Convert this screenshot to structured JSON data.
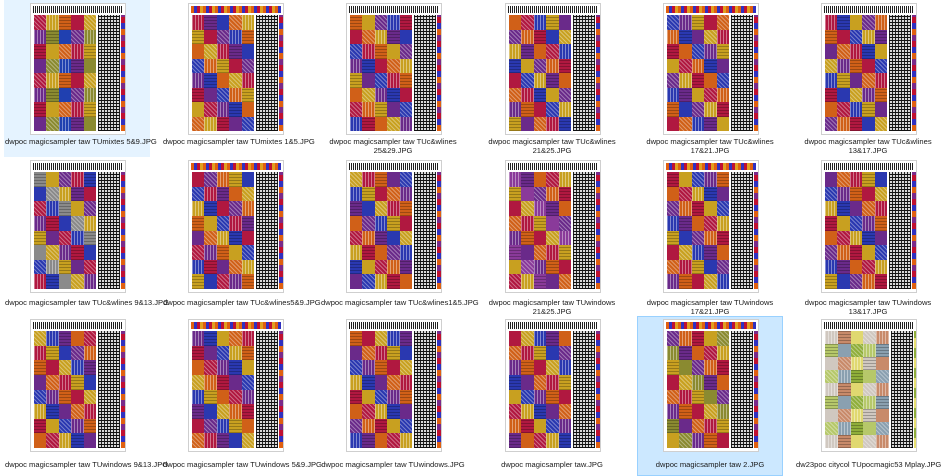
{
  "files": [
    {
      "name": "dwpoc magicsampler taw TUmixtes 5&9.JPG",
      "state": "selected",
      "palette": [
        "#b01840",
        "#2040b0",
        "#c8a020",
        "#6a2a8a",
        "#d06018",
        "#8a8a30"
      ]
    },
    {
      "name": "dwpoc magicsampler taw TUmixtes 1&5.JPG",
      "state": "normal",
      "palette": [
        "#2a38b0",
        "#b01840",
        "#d06018",
        "#6a2a8a",
        "#c8a020"
      ]
    },
    {
      "name": "dwpoc magicsampler taw TUc&wlines 25&29.JPG",
      "state": "normal",
      "palette": [
        "#b01840",
        "#6a2a8a",
        "#d06018",
        "#2a38b0",
        "#c8a020"
      ]
    },
    {
      "name": "dwpoc magicsampler taw TUc&wlines 21&25.JPG",
      "state": "normal",
      "palette": [
        "#b01840",
        "#6a2a8a",
        "#2a38b0",
        "#d06018",
        "#c8a020"
      ]
    },
    {
      "name": "dwpoc magicsampler taw TUc&wlines 17&21.JPG",
      "state": "normal",
      "palette": [
        "#b01840",
        "#6a2a8a",
        "#d06018",
        "#c8a020",
        "#2a38b0"
      ]
    },
    {
      "name": "dwpoc magicsampler taw TUc&wlines 13&17.JPG",
      "state": "normal",
      "palette": [
        "#b01840",
        "#6a2a8a",
        "#2a38b0",
        "#d06018",
        "#c8a020"
      ]
    },
    {
      "name": "dwpoc magicsampler taw TUc&wlines 9&13.JPG",
      "state": "normal",
      "palette": [
        "#6a2a8a",
        "#8a8a8a",
        "#b01840",
        "#c8a020",
        "#2a38b0"
      ]
    },
    {
      "name": "dwpoc magicsampler taw TUc&wlines5&9.JPG",
      "state": "normal",
      "palette": [
        "#2a38b0",
        "#d06018",
        "#b01840",
        "#c8a020",
        "#6a2a8a"
      ]
    },
    {
      "name": "dwpoc magicsampler taw TUc&wlines1&5.JPG",
      "state": "normal",
      "palette": [
        "#b01840",
        "#2a38b0",
        "#d06018",
        "#c8a020",
        "#6a2a8a"
      ]
    },
    {
      "name": "dwpoc magicsampler taw TUwindows 21&25.JPG",
      "state": "normal",
      "palette": [
        "#b01840",
        "#6a2a8a",
        "#c8a020",
        "#d06018",
        "#8a3a9a"
      ]
    },
    {
      "name": "dwpoc magicsampler taw TUwindows 17&21.JPG",
      "state": "normal",
      "palette": [
        "#b01840",
        "#6a2a8a",
        "#c8a020",
        "#d06018",
        "#2a38b0"
      ]
    },
    {
      "name": "dwpoc magicsampler taw TUwindows 13&17.JPG",
      "state": "normal",
      "palette": [
        "#b01840",
        "#6a2a8a",
        "#c8a020",
        "#d06018",
        "#2a38b0"
      ]
    },
    {
      "name": "dwpoc magicsampler taw TUwindows 9&13.JPG",
      "state": "normal",
      "palette": [
        "#b01840",
        "#6a2a8a",
        "#c8a020",
        "#d06018",
        "#2a38b0"
      ]
    },
    {
      "name": "dwpoc magicsampler taw TUwindows 5&9.JPG",
      "state": "normal",
      "palette": [
        "#2a38b0",
        "#b01840",
        "#c8a020",
        "#6a2a8a",
        "#d06018"
      ]
    },
    {
      "name": "dwpoc magicsampler taw TUwindows.JPG",
      "state": "normal",
      "palette": [
        "#2a38b0",
        "#b01840",
        "#6a2a8a",
        "#c8a020",
        "#d06018"
      ]
    },
    {
      "name": "dwpoc magicsampler taw.JPG",
      "state": "normal",
      "palette": [
        "#b01840",
        "#6a2a8a",
        "#c8a020",
        "#d06018",
        "#2a38b0"
      ]
    },
    {
      "name": "dwpoc magicsampler taw 2.JPG",
      "state": "hover",
      "palette": [
        "#b01840",
        "#6a2a8a",
        "#c8a020",
        "#d06018",
        "#8a8a30"
      ]
    },
    {
      "name": "dw23poc citycol TUpocmagic53 Mplay.JPG",
      "state": "normal",
      "palette": [
        "#8fae3a",
        "#c88a6a",
        "#b6c86a",
        "#e0d870",
        "#8aa0b0",
        "#d0c8c0"
      ]
    }
  ]
}
